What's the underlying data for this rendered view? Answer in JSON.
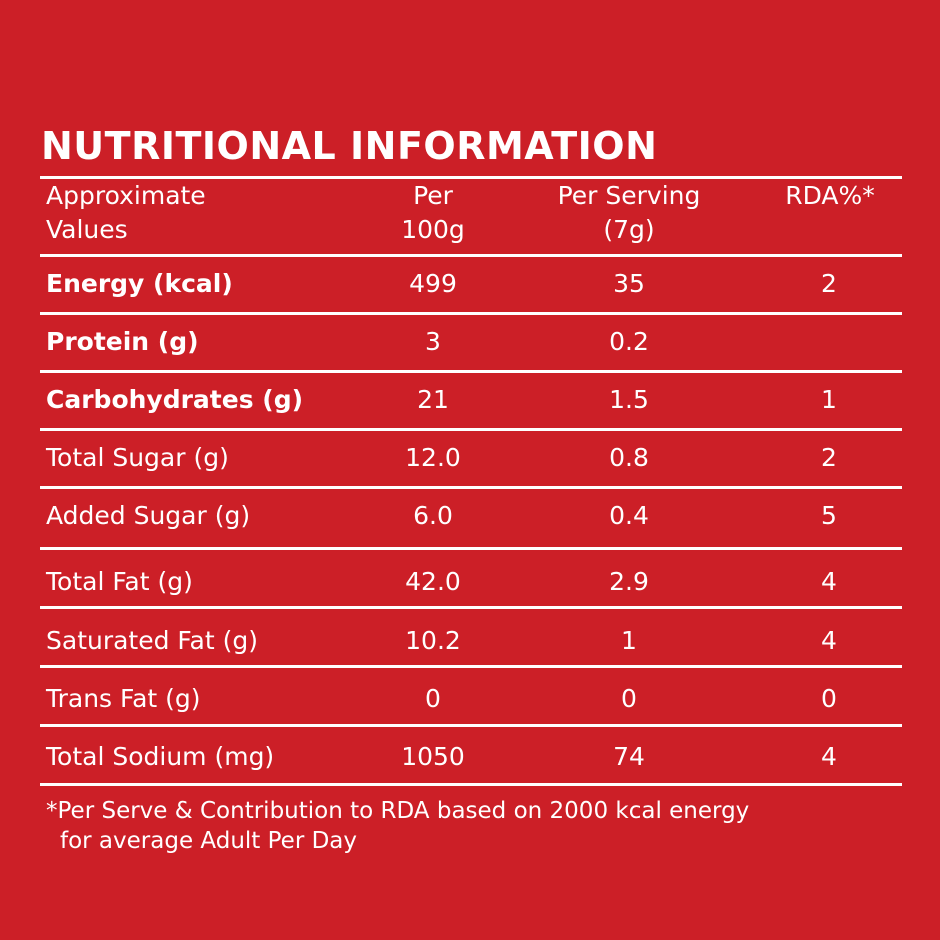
{
  "title": "NUTRITIONAL INFORMATION",
  "header": {
    "col1_line1": "Approximate",
    "col1_line2": "Values",
    "col2_line1": "Per",
    "col2_line2": "100g",
    "col3_line1": "Per Serving",
    "col3_line2": "(7g)",
    "col4": "RDA%*"
  },
  "rows": [
    {
      "name": "Energy (kcal)",
      "per100g": "499",
      "perServing": "35",
      "rda": "2",
      "bold": true
    },
    {
      "name": "Protein (g)",
      "per100g": "3",
      "perServing": "0.2",
      "rda": "",
      "bold": true
    },
    {
      "name": "Carbohydrates (g)",
      "per100g": "21",
      "perServing": "1.5",
      "rda": "1",
      "bold": true
    },
    {
      "name": "Total Sugar (g)",
      "per100g": "12.0",
      "perServing": "0.8",
      "rda": "2",
      "bold": false
    },
    {
      "name": "Added Sugar (g)",
      "per100g": "6.0",
      "perServing": "0.4",
      "rda": "5",
      "bold": false
    },
    {
      "name": "Total Fat (g)",
      "per100g": "42.0",
      "perServing": "2.9",
      "rda": "4",
      "bold": false
    },
    {
      "name": "Saturated Fat (g)",
      "per100g": "10.2",
      "perServing": "1",
      "rda": "4",
      "bold": false
    },
    {
      "name": "Trans Fat (g)",
      "per100g": "0",
      "perServing": "0",
      "rda": "0",
      "bold": false
    },
    {
      "name": "Total Sodium (mg)",
      "per100g": "1050",
      "perServing": "74",
      "rda": "4",
      "bold": false
    }
  ],
  "footnote": {
    "line1": "*Per Serve & Contribution to RDA based on 2000 kcal energy",
    "line2": "for average Adult Per Day"
  },
  "colors": {
    "background": "#cc1f27",
    "text": "#ffffff"
  }
}
